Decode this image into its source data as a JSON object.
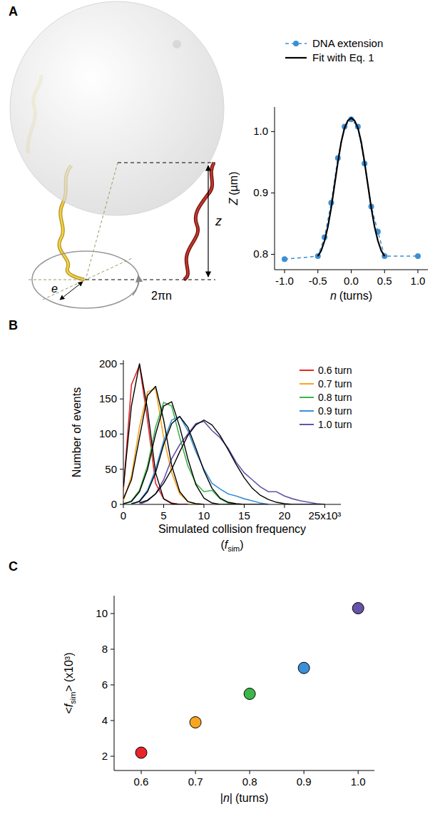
{
  "panel_labels": [
    "A",
    "B",
    "C"
  ],
  "diagram": {
    "labels": {
      "height": "z",
      "radius": "e",
      "angle": "2πn"
    }
  },
  "chart_data": [
    {
      "type": "line",
      "x_label": {
        "symbol": "n",
        "unit": "(turns)"
      },
      "y_label": {
        "symbol": "Z",
        "unit": "(µm)"
      },
      "xlim": [
        -1.15,
        1.15
      ],
      "xticks": [
        {
          "value": -1,
          "label": "-1.0"
        },
        {
          "value": -0.5,
          "label": "-0.5"
        },
        {
          "value": 0,
          "label": "0.0"
        },
        {
          "value": 0.5,
          "label": "0.5"
        },
        {
          "value": 1,
          "label": "1.0"
        }
      ],
      "ylim": [
        0.775,
        1.04
      ],
      "yticks": [
        0.8,
        0.9,
        {
          "value": 1,
          "label": "1.0"
        }
      ],
      "legend": "top",
      "series": [
        {
          "name": "DNA extension",
          "color": "#3d8fd1",
          "line_style": "dashed",
          "marker": "circle",
          "x": [
            -1,
            -0.5,
            -0.4,
            -0.3,
            -0.2,
            -0.1,
            0,
            0.1,
            0.2,
            0.3,
            0.4,
            0.5,
            1
          ],
          "values": [
            0.792,
            0.797,
            0.828,
            0.884,
            0.957,
            1.008,
            1.02,
            1.008,
            0.948,
            0.878,
            0.837,
            0.797,
            0.797
          ]
        },
        {
          "name": "Fit with Eq. 1",
          "color": "#000000",
          "line_style": "solid",
          "x": [
            -0.5,
            -0.45,
            -0.4,
            -0.35,
            -0.3,
            -0.25,
            -0.2,
            -0.15,
            -0.1,
            -0.05,
            0,
            0.05,
            0.1,
            0.15,
            0.2,
            0.25,
            0.3,
            0.35,
            0.4,
            0.45,
            0.5
          ],
          "values": [
            0.797,
            0.806,
            0.822,
            0.845,
            0.876,
            0.913,
            0.95,
            0.983,
            1.006,
            1.018,
            1.022,
            1.018,
            1.006,
            0.983,
            0.95,
            0.913,
            0.876,
            0.845,
            0.822,
            0.806,
            0.797
          ]
        }
      ]
    },
    {
      "type": "line",
      "y_label": "Number of events",
      "x_label": "Simulated collision frequency",
      "x_label_math": {
        "open": "(",
        "symbol": "f",
        "sub": "sim",
        "close": ")"
      },
      "x": [
        0,
        1,
        2,
        3,
        4,
        5,
        6,
        7,
        8,
        9,
        10,
        11,
        12,
        13,
        14,
        15,
        16,
        17,
        18,
        19,
        20,
        21,
        22,
        23,
        24,
        25
      ],
      "xlim": [
        0,
        27
      ],
      "xticks": [
        0,
        5,
        10,
        15,
        20,
        {
          "value": 25,
          "label": "25x10³"
        }
      ],
      "ylim": [
        0,
        205
      ],
      "yticks": [
        0,
        50,
        100,
        150,
        200
      ],
      "legend": "top-right",
      "series": [
        {
          "name": "0.6 turn",
          "color": "#e8262a",
          "values": [
            20,
            170,
            198,
            120,
            30,
            8,
            2,
            0,
            0,
            null,
            null,
            null,
            null,
            null,
            null,
            null,
            null,
            null,
            null,
            null,
            null,
            null,
            null,
            null,
            null,
            null
          ],
          "fit_values": [
            25,
            140,
            200,
            135,
            45,
            8,
            1,
            0,
            0,
            null,
            null,
            null,
            null,
            null,
            null,
            null,
            null,
            null,
            null,
            null,
            null,
            null,
            null,
            null,
            null,
            null
          ]
        },
        {
          "name": "0.7 turn",
          "color": "#f7a521",
          "values": [
            5,
            40,
            110,
            160,
            165,
            95,
            45,
            15,
            4,
            1,
            0,
            null,
            null,
            null,
            null,
            null,
            null,
            null,
            null,
            null,
            null,
            null,
            null,
            null,
            null,
            null
          ],
          "fit_values": [
            8,
            35,
            95,
            155,
            168,
            120,
            55,
            18,
            4,
            1,
            0,
            null,
            null,
            null,
            null,
            null,
            null,
            null,
            null,
            null,
            null,
            null,
            null,
            null,
            null,
            null
          ]
        },
        {
          "name": "0.8 turn",
          "color": "#3cb54a",
          "values": [
            0,
            5,
            20,
            55,
            110,
            145,
            140,
            95,
            55,
            30,
            18,
            20,
            8,
            2,
            0,
            null,
            null,
            null,
            null,
            null,
            null,
            null,
            null,
            null,
            null,
            null
          ],
          "fit_values": [
            1,
            4,
            18,
            50,
            100,
            140,
            146,
            110,
            65,
            28,
            9,
            2,
            0,
            0,
            0,
            null,
            null,
            null,
            null,
            null,
            null,
            null,
            null,
            null,
            null,
            null
          ]
        },
        {
          "name": "0.9 turn",
          "color": "#3b8fd8",
          "values": [
            null,
            0,
            5,
            20,
            50,
            90,
            120,
            125,
            105,
            75,
            50,
            30,
            22,
            15,
            12,
            8,
            5,
            2,
            0,
            null,
            null,
            null,
            null,
            null,
            null,
            null
          ],
          "fit_values": [
            null,
            1,
            4,
            18,
            45,
            85,
            115,
            125,
            110,
            80,
            48,
            23,
            9,
            3,
            1,
            0,
            0,
            0,
            0,
            null,
            null,
            null,
            null,
            null,
            null,
            null
          ]
        },
        {
          "name": "1.0 turn",
          "color": "#6653a8",
          "values": [
            null,
            null,
            0,
            5,
            15,
            35,
            65,
            85,
            100,
            115,
            118,
            105,
            95,
            80,
            60,
            45,
            35,
            25,
            18,
            18,
            12,
            8,
            5,
            3,
            1,
            0
          ],
          "fit_values": [
            null,
            null,
            2,
            6,
            15,
            30,
            50,
            75,
            98,
            113,
            120,
            113,
            98,
            78,
            57,
            38,
            23,
            13,
            7,
            3,
            1,
            0,
            0,
            0,
            0,
            0
          ]
        }
      ]
    },
    {
      "type": "scatter",
      "x_label": {
        "open": "|",
        "symbol": "n",
        "close": "|",
        "unit": "(turns)"
      },
      "y_label": {
        "open": "<",
        "symbol": "f",
        "sub": "sim",
        "close": ">",
        "unit": "(x10³)"
      },
      "x": [
        0.6,
        0.7,
        0.8,
        0.9,
        1.0
      ],
      "values": [
        2.2,
        3.9,
        5.5,
        6.95,
        10.3
      ],
      "colors": [
        "#e8262a",
        "#f7a521",
        "#3cb54a",
        "#3b8fd8",
        "#6653a8"
      ],
      "marker": "circle",
      "xlim": [
        0.55,
        1.03
      ],
      "xticks": [
        0.6,
        0.7,
        0.8,
        0.9,
        {
          "value": 1,
          "label": "1.0"
        }
      ],
      "ylim": [
        1.2,
        11
      ],
      "yticks": [
        2,
        4,
        6,
        8,
        10
      ]
    }
  ]
}
